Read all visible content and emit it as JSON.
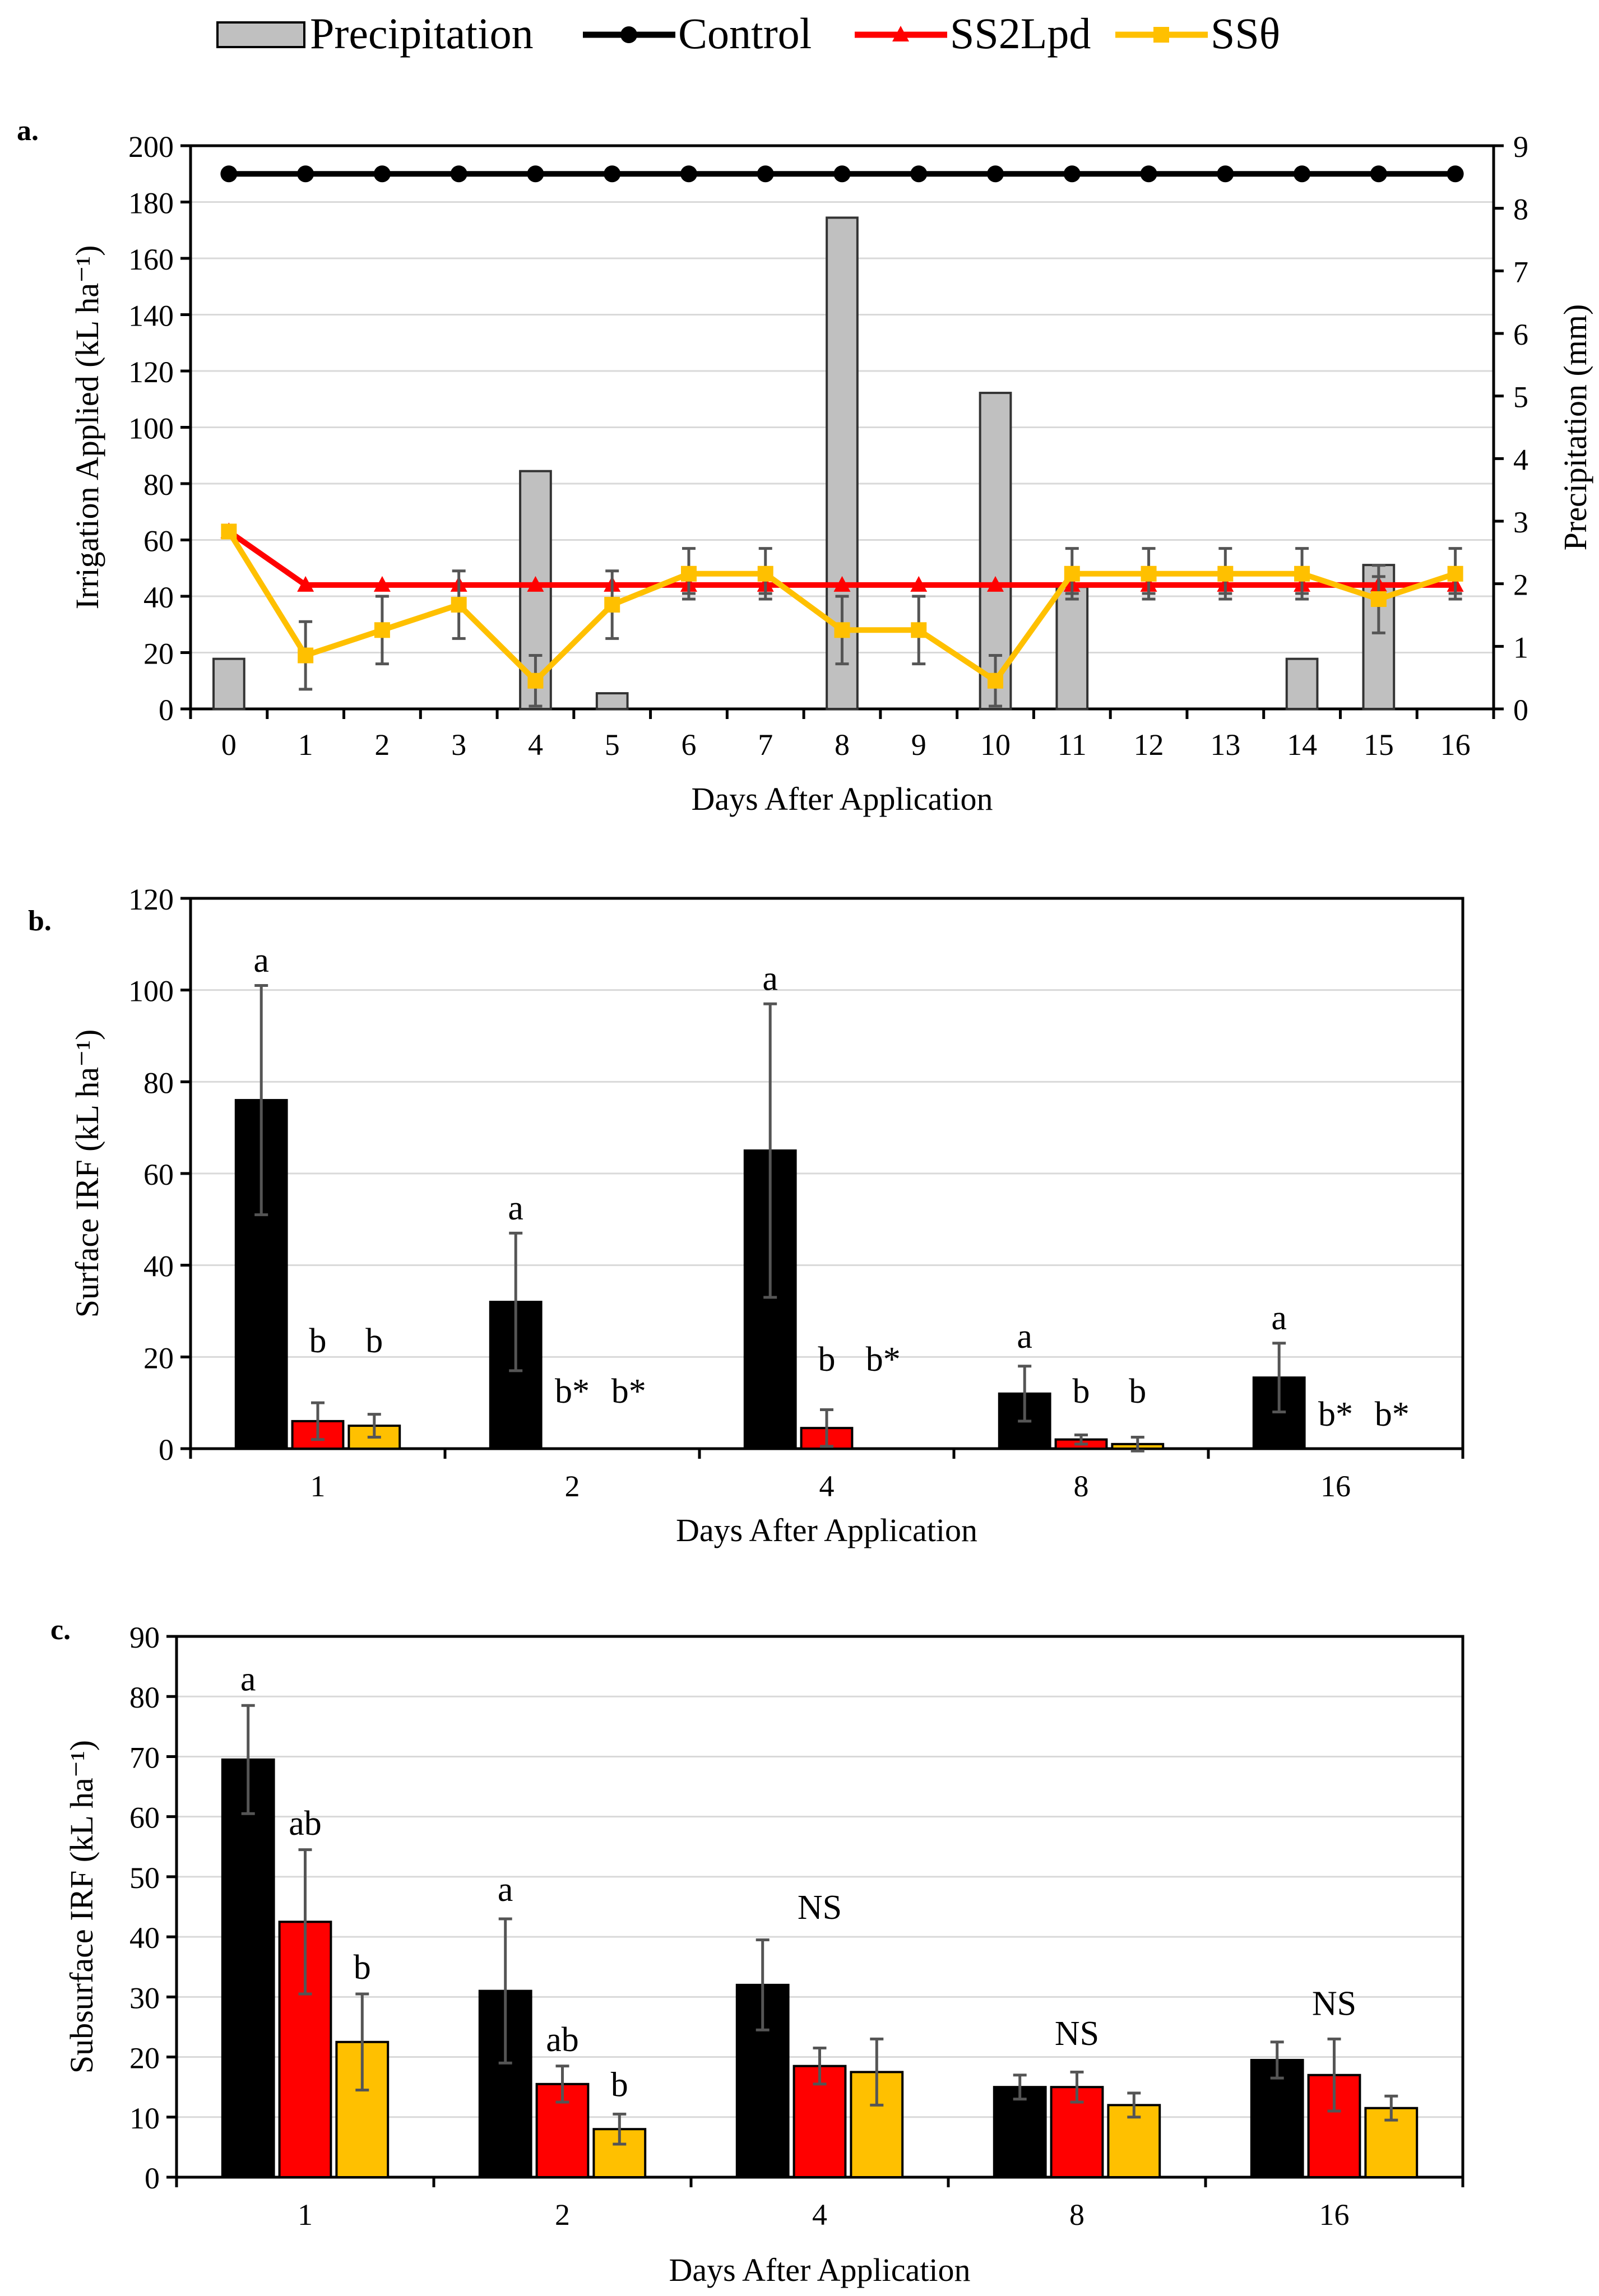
{
  "legend": {
    "items": [
      {
        "label": "Precipitation",
        "kind": "bar",
        "color": "#c0c0c0"
      },
      {
        "label": "Control",
        "kind": "line",
        "color": "#000000"
      },
      {
        "label": "SS2Lpd",
        "kind": "line",
        "color": "#ff0000"
      },
      {
        "label": "SSθ",
        "kind": "line",
        "color": "#ffc000"
      }
    ]
  },
  "chart_data": [
    {
      "panel": "a.",
      "type": "bar+line",
      "xlabel": "Days After Application",
      "ylabel": "Irrigation Applied (kL ha⁻¹)",
      "y2label": "Precipitation (mm)",
      "x": [
        0,
        1,
        2,
        3,
        4,
        5,
        6,
        7,
        8,
        9,
        10,
        11,
        12,
        13,
        14,
        15,
        16
      ],
      "ylim": [
        0,
        200
      ],
      "yticks": [
        0,
        20,
        40,
        60,
        80,
        100,
        120,
        140,
        160,
        180,
        200
      ],
      "y2lim": [
        0,
        9
      ],
      "y2ticks": [
        0,
        1,
        2,
        3,
        4,
        5,
        6,
        7,
        8,
        9
      ],
      "grid": true,
      "bars": {
        "name": "Precipitation",
        "axis": "y2",
        "color": "#c0c0c0",
        "values": [
          0.8,
          0,
          0,
          0,
          3.8,
          0.25,
          0,
          0,
          7.85,
          0,
          5.05,
          1.95,
          0,
          0,
          0.8,
          2.3,
          0
        ]
      },
      "series": [
        {
          "name": "Control",
          "color": "#000000",
          "marker": "circle",
          "values": [
            190,
            190,
            190,
            190,
            190,
            190,
            190,
            190,
            190,
            190,
            190,
            190,
            190,
            190,
            190,
            190,
            190
          ]
        },
        {
          "name": "SS2Lpd",
          "color": "#ff0000",
          "marker": "triangle",
          "values": [
            63,
            44,
            44,
            44,
            44,
            44,
            44,
            44,
            44,
            44,
            44,
            44,
            44,
            44,
            44,
            44,
            44
          ],
          "err": [
            0,
            0,
            0,
            0,
            0,
            0,
            3,
            3,
            0,
            0,
            0,
            3,
            3,
            3,
            3,
            3,
            3
          ]
        },
        {
          "name": "SSθ",
          "color": "#ffc000",
          "marker": "square",
          "values": [
            63,
            19,
            28,
            37,
            10,
            37,
            48,
            48,
            28,
            28,
            10,
            48,
            48,
            48,
            48,
            39,
            48
          ],
          "err": [
            0,
            12,
            12,
            12,
            9,
            12,
            9,
            9,
            12,
            12,
            9,
            9,
            9,
            9,
            9,
            12,
            9
          ]
        }
      ]
    },
    {
      "panel": "b.",
      "type": "bar",
      "xlabel": "Days After Application",
      "ylabel": "Surface IRF (kL ha⁻¹)",
      "categories": [
        "1",
        "2",
        "4",
        "8",
        "16"
      ],
      "ylim": [
        0,
        120
      ],
      "yticks": [
        0,
        20,
        40,
        60,
        80,
        100,
        120
      ],
      "grid": true,
      "series": [
        {
          "name": "Control",
          "color": "#000000",
          "values": [
            76,
            32,
            65,
            12,
            15.5
          ],
          "err": [
            25,
            15,
            32,
            6,
            7.5
          ]
        },
        {
          "name": "SS2Lpd",
          "color": "#ff0000",
          "values": [
            6,
            0,
            4.5,
            2,
            0
          ],
          "err": [
            4,
            0,
            4,
            1,
            0
          ]
        },
        {
          "name": "SSθ",
          "color": "#ffc000",
          "values": [
            5,
            0,
            0,
            1,
            0
          ],
          "err": [
            2.5,
            0,
            0,
            1.5,
            0
          ]
        }
      ],
      "annotations": [
        {
          "category": "1",
          "series": "Control",
          "text": "a",
          "y": 104
        },
        {
          "category": "1",
          "series": "SS2Lpd",
          "text": "b",
          "y": 21
        },
        {
          "category": "1",
          "series": "SSθ",
          "text": "b",
          "y": 21
        },
        {
          "category": "2",
          "series": "Control",
          "text": "a",
          "y": 50
        },
        {
          "category": "2",
          "series": "SS2Lpd",
          "text": "b*",
          "y": 10
        },
        {
          "category": "2",
          "series": "SSθ",
          "text": "b*",
          "y": 10
        },
        {
          "category": "4",
          "series": "Control",
          "text": "a",
          "y": 100
        },
        {
          "category": "4",
          "series": "SS2Lpd",
          "text": "b",
          "y": 17
        },
        {
          "category": "4",
          "series": "SSθ",
          "text": "b*",
          "y": 17
        },
        {
          "category": "8",
          "series": "Control",
          "text": "a",
          "y": 22
        },
        {
          "category": "8",
          "series": "SS2Lpd",
          "text": "b",
          "y": 10
        },
        {
          "category": "8",
          "series": "SSθ",
          "text": "b",
          "y": 10
        },
        {
          "category": "16",
          "series": "Control",
          "text": "a",
          "y": 26
        },
        {
          "category": "16",
          "series": "SS2Lpd",
          "text": "b*",
          "y": 5
        },
        {
          "category": "16",
          "series": "SSθ",
          "text": "b*",
          "y": 5
        }
      ]
    },
    {
      "panel": "c.",
      "type": "bar",
      "xlabel": "Days After Application",
      "ylabel": "Subsurface IRF (kL ha⁻¹)",
      "categories": [
        "1",
        "2",
        "4",
        "8",
        "16"
      ],
      "ylim": [
        0,
        90
      ],
      "yticks": [
        0,
        10,
        20,
        30,
        40,
        50,
        60,
        70,
        80,
        90
      ],
      "grid": true,
      "series": [
        {
          "name": "Control",
          "color": "#000000",
          "values": [
            69.5,
            31,
            32,
            15,
            19.5
          ],
          "err": [
            9,
            12,
            7.5,
            2,
            3
          ]
        },
        {
          "name": "SS2Lpd",
          "color": "#ff0000",
          "values": [
            42.5,
            15.5,
            18.5,
            15,
            17
          ],
          "err": [
            12,
            3,
            3,
            2.5,
            6
          ]
        },
        {
          "name": "SSθ",
          "color": "#ffc000",
          "values": [
            22.5,
            8,
            17.5,
            12,
            11.5
          ],
          "err": [
            8,
            2.5,
            5.5,
            2,
            2
          ]
        }
      ],
      "annotations": [
        {
          "category": "1",
          "series": "Control",
          "text": "a",
          "y": 81
        },
        {
          "category": "1",
          "series": "SS2Lpd",
          "text": "ab",
          "y": 57
        },
        {
          "category": "1",
          "series": "SSθ",
          "text": "b",
          "y": 33
        },
        {
          "category": "2",
          "series": "Control",
          "text": "a",
          "y": 46
        },
        {
          "category": "2",
          "series": "SS2Lpd",
          "text": "ab",
          "y": 21
        },
        {
          "category": "2",
          "series": "SSθ",
          "text": "b",
          "y": 13.5
        },
        {
          "category": "4",
          "series": "SS2Lpd",
          "text": "NS",
          "y": 43
        },
        {
          "category": "8",
          "series": "SS2Lpd",
          "text": "NS",
          "y": 22
        },
        {
          "category": "16",
          "series": "SS2Lpd",
          "text": "NS",
          "y": 27
        }
      ]
    }
  ]
}
